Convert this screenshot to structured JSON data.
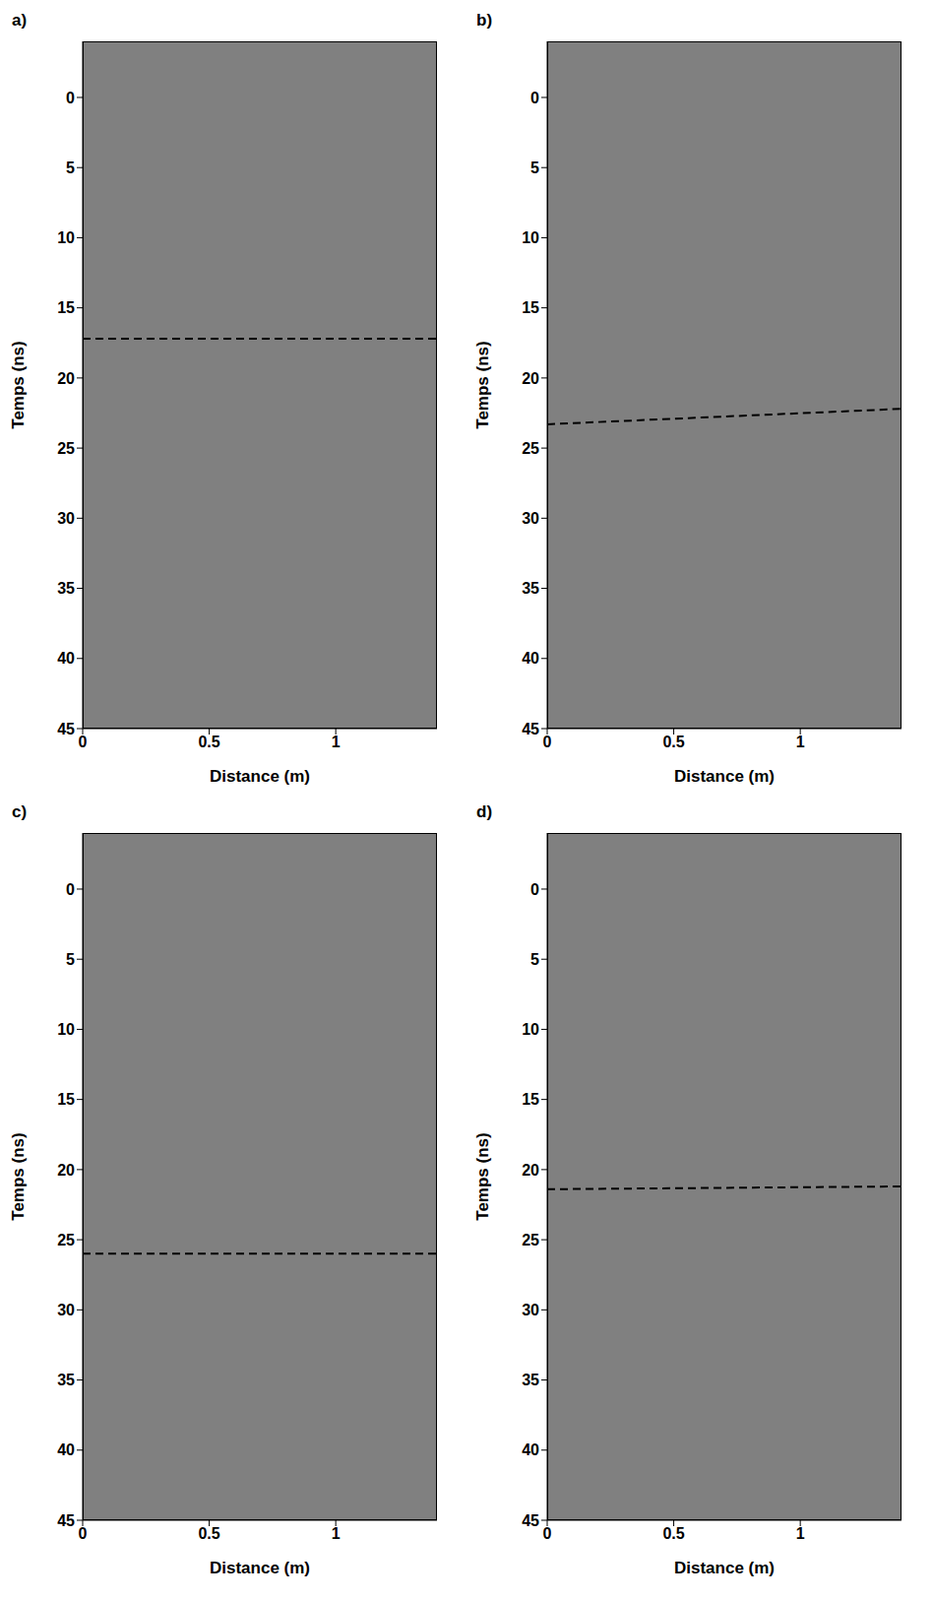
{
  "chart_data": [
    {
      "type": "line",
      "title": "a)",
      "x_label": "Distance (m)",
      "y_label": "Temps (ns)",
      "xlim": [
        0,
        1.4
      ],
      "ylim": [
        -4,
        45
      ],
      "xticks": [
        0,
        0.5,
        1
      ],
      "yticks": [
        0,
        5,
        10,
        15,
        20,
        25,
        30,
        35,
        40,
        45
      ],
      "series": [
        {
          "x": [
            0,
            1.4
          ],
          "values": [
            17.2,
            17.2
          ],
          "color": "#000000",
          "line_style": "dashed"
        }
      ]
    },
    {
      "type": "line",
      "title": "b)",
      "x_label": "Distance (m)",
      "y_label": "Temps (ns)",
      "xlim": [
        0,
        1.4
      ],
      "ylim": [
        -4,
        45
      ],
      "xticks": [
        0,
        0.5,
        1
      ],
      "yticks": [
        0,
        5,
        10,
        15,
        20,
        25,
        30,
        35,
        40,
        45
      ],
      "series": [
        {
          "x": [
            0,
            1.4
          ],
          "values": [
            23.3,
            22.2
          ],
          "color": "#000000",
          "line_style": "dashed"
        }
      ]
    },
    {
      "type": "line",
      "title": "c)",
      "x_label": "Distance (m)",
      "y_label": "Temps (ns)",
      "xlim": [
        0,
        1.4
      ],
      "ylim": [
        -4,
        45
      ],
      "xticks": [
        0,
        0.5,
        1
      ],
      "yticks": [
        0,
        5,
        10,
        15,
        20,
        25,
        30,
        35,
        40,
        45
      ],
      "series": [
        {
          "x": [
            0,
            1.4
          ],
          "values": [
            26,
            26
          ],
          "color": "#000000",
          "line_style": "dashed"
        }
      ]
    },
    {
      "type": "line",
      "title": "d)",
      "x_label": "Distance (m)",
      "y_label": "Temps (ns)",
      "xlim": [
        0,
        1.4
      ],
      "ylim": [
        -4,
        45
      ],
      "xticks": [
        0,
        0.5,
        1
      ],
      "yticks": [
        0,
        5,
        10,
        15,
        20,
        25,
        30,
        35,
        40,
        45
      ],
      "series": [
        {
          "x": [
            0,
            1.4
          ],
          "values": [
            21.4,
            21.2
          ],
          "color": "#000000",
          "line_style": "dashed"
        }
      ]
    }
  ]
}
